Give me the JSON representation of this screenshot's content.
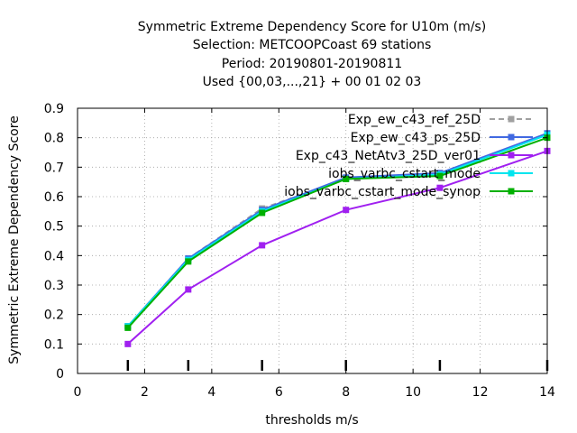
{
  "chart_data": {
    "type": "line",
    "title_lines": [
      "Symmetric Extreme Dependency Score  for U10m (m/s)",
      "Selection: METCOOPCoast     69 stations",
      "Period: 20190801-20190811",
      "Used {00,03,...,21} + 00 01 02 03"
    ],
    "xlabel": "thresholds m/s",
    "ylabel": "Symmetric Extreme Dependency Score",
    "xlim": [
      0,
      14
    ],
    "ylim": [
      0,
      0.9
    ],
    "x_ticks": [
      "0",
      "2",
      "4",
      "6",
      "8",
      "10",
      "12",
      "14"
    ],
    "y_ticks": [
      "0",
      "0.1",
      "0.2",
      "0.3",
      "0.4",
      "0.5",
      "0.6",
      "0.7",
      "0.8",
      "0.9"
    ],
    "grid": true,
    "legend_position": "top-right",
    "x": [
      1.5,
      3.3,
      5.5,
      8.0,
      10.8,
      14.0
    ],
    "series": [
      {
        "name": "Exp_ew_c43_ref_25D",
        "color": "#a0a0a0",
        "dashed": true,
        "values": [
          0.16,
          0.39,
          0.56,
          0.66,
          0.68,
          0.81
        ]
      },
      {
        "name": "Exp_ew_c43_ps_25D",
        "color": "#4169e1",
        "dashed": false,
        "values": [
          0.16,
          0.39,
          0.555,
          0.665,
          0.68,
          0.815
        ]
      },
      {
        "name": "Exp_c43_NetAtv3_25D_ver01",
        "color": "#a020f0",
        "dashed": false,
        "values": [
          0.1,
          0.285,
          0.435,
          0.555,
          0.63,
          0.755
        ]
      },
      {
        "name": "iobs_varbc_cstart_mode",
        "color": "#00e5ee",
        "dashed": false,
        "values": [
          0.16,
          0.385,
          0.55,
          0.66,
          0.675,
          0.81
        ]
      },
      {
        "name": "iobs_varbc_cstart_mode_synop",
        "color": "#00b000",
        "dashed": false,
        "values": [
          0.155,
          0.38,
          0.545,
          0.66,
          0.67,
          0.8
        ]
      }
    ],
    "threshold_marks": [
      1.5,
      3.3,
      5.5,
      8.0,
      10.8,
      14.0
    ]
  }
}
